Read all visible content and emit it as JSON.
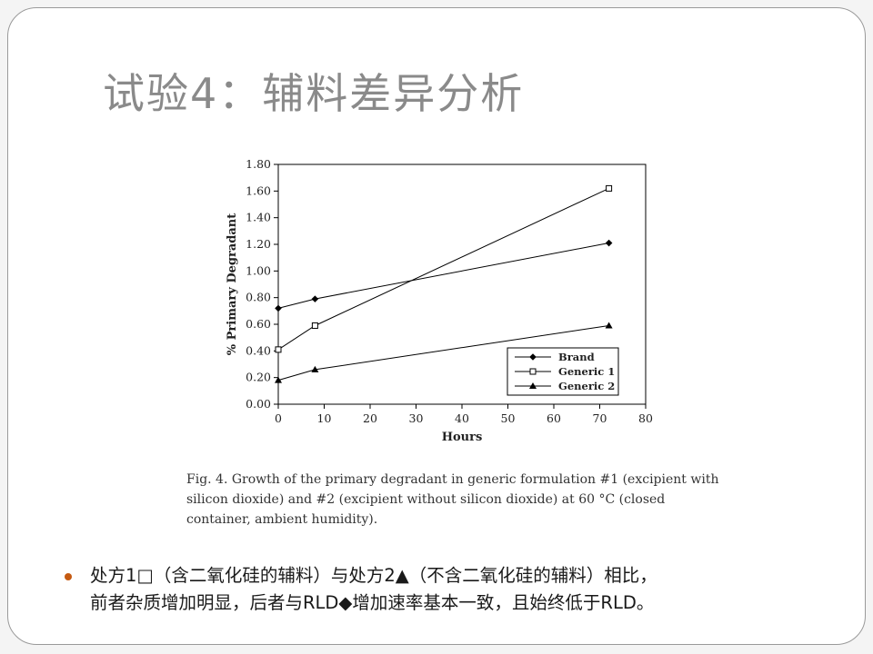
{
  "slide": {
    "title": "试验4：辅料差异分析"
  },
  "chart_data": {
    "type": "line",
    "xlabel": "Hours",
    "ylabel": "% Primary Degradant",
    "xlim": [
      0,
      80
    ],
    "ylim": [
      0,
      1.8
    ],
    "x_ticks": [
      "0",
      "10",
      "20",
      "30",
      "40",
      "50",
      "60",
      "70",
      "80"
    ],
    "y_ticks": [
      "0.00",
      "0.20",
      "0.40",
      "0.60",
      "0.80",
      "1.00",
      "1.20",
      "1.40",
      "1.60",
      "1.80"
    ],
    "x_tick_values": [
      0,
      10,
      20,
      30,
      40,
      50,
      60,
      70,
      80
    ],
    "y_tick_values": [
      0,
      0.2,
      0.4,
      0.6,
      0.8,
      1.0,
      1.2,
      1.4,
      1.6,
      1.8
    ],
    "grid": false,
    "legend_position": "bottom-right",
    "series": [
      {
        "name": "Brand",
        "marker": "diamond",
        "x": [
          0,
          8,
          72
        ],
        "y": [
          0.72,
          0.79,
          1.21
        ]
      },
      {
        "name": "Generic 1",
        "marker": "open-square",
        "x": [
          0,
          8,
          72
        ],
        "y": [
          0.41,
          0.59,
          1.62
        ]
      },
      {
        "name": "Generic 2",
        "marker": "triangle",
        "x": [
          0,
          8,
          72
        ],
        "y": [
          0.18,
          0.26,
          0.59
        ]
      }
    ]
  },
  "caption": {
    "text": "Fig. 4. Growth of the primary degradant in generic formulation #1 (excipient with silicon dioxide) and #2 (excipient without silicon dioxide) at 60 °C (closed container, ambient humidity)."
  },
  "bullet": {
    "line1": "处方1□（含二氧化硅的辅料）与处方2▲（不含二氧化硅的辅料）相比，",
    "line2": "前者杂质增加明显，后者与RLD◆增加速率基本一致，且始终低于RLD。"
  },
  "colors": {
    "bullet_dot": "#c55a11",
    "title": "#8a8a8a",
    "series_line": "#000000"
  }
}
